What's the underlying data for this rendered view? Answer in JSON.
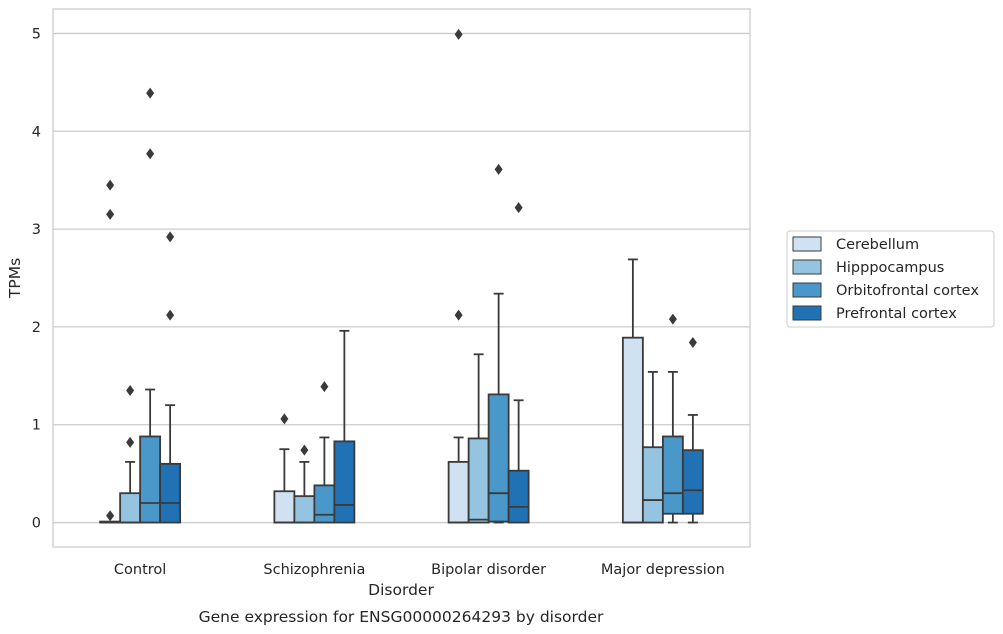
{
  "chart_data": {
    "type": "box",
    "title": "",
    "caption": "Gene expression for ENSG00000264293 by disorder",
    "xlabel": "Disorder",
    "ylabel": "TPMs",
    "ylim": [
      -0.25,
      5.25
    ],
    "yticks": [
      0,
      1,
      2,
      3,
      4,
      5
    ],
    "grid": "horizontal",
    "legend_position": "right",
    "categories": [
      "Control",
      "Schizophrenia",
      "Bipolar disorder",
      "Major depression"
    ],
    "series": [
      {
        "name": "Cerebellum",
        "color": "#d0e1f2",
        "boxes": [
          {
            "q1": 0,
            "median": 0,
            "q3": 0.01,
            "whisker_low": 0,
            "whisker_high": 0.01,
            "outliers": [
              0.07,
              3.15,
              3.45
            ]
          },
          {
            "q1": 0,
            "median": 0,
            "q3": 0.32,
            "whisker_low": 0,
            "whisker_high": 0.75,
            "outliers": [
              1.06
            ]
          },
          {
            "q1": 0,
            "median": 0,
            "q3": 0.62,
            "whisker_low": 0,
            "whisker_high": 0.87,
            "outliers": [
              2.12,
              4.99
            ]
          },
          {
            "q1": 0,
            "median": 0,
            "q3": 1.89,
            "whisker_low": 0,
            "whisker_high": 2.69,
            "outliers": []
          }
        ]
      },
      {
        "name": "Hipppocampus",
        "color": "#94c4df",
        "boxes": [
          {
            "q1": 0,
            "median": 0,
            "q3": 0.3,
            "whisker_low": 0,
            "whisker_high": 0.62,
            "outliers": [
              0.82,
              1.35
            ]
          },
          {
            "q1": 0,
            "median": 0,
            "q3": 0.27,
            "whisker_low": 0,
            "whisker_high": 0.62,
            "outliers": [
              0.74
            ]
          },
          {
            "q1": 0,
            "median": 0.03,
            "q3": 0.86,
            "whisker_low": 0,
            "whisker_high": 1.72,
            "outliers": []
          },
          {
            "q1": 0,
            "median": 0.23,
            "q3": 0.77,
            "whisker_low": 0,
            "whisker_high": 1.54,
            "outliers": []
          }
        ]
      },
      {
        "name": "Orbitofrontal cortex",
        "color": "#4a98c9",
        "boxes": [
          {
            "q1": 0,
            "median": 0.2,
            "q3": 0.88,
            "whisker_low": 0,
            "whisker_high": 1.36,
            "outliers": [
              3.77,
              4.39
            ]
          },
          {
            "q1": 0,
            "median": 0.08,
            "q3": 0.38,
            "whisker_low": 0,
            "whisker_high": 0.87,
            "outliers": [
              1.39
            ]
          },
          {
            "q1": 0.01,
            "median": 0.3,
            "q3": 1.31,
            "whisker_low": 0,
            "whisker_high": 2.34,
            "outliers": [
              3.61
            ]
          },
          {
            "q1": 0.09,
            "median": 0.3,
            "q3": 0.88,
            "whisker_low": 0,
            "whisker_high": 1.54,
            "outliers": [
              2.08
            ]
          }
        ]
      },
      {
        "name": "Prefrontal cortex",
        "color": "#2171b5",
        "boxes": [
          {
            "q1": 0,
            "median": 0.2,
            "q3": 0.6,
            "whisker_low": 0,
            "whisker_high": 1.2,
            "outliers": [
              2.12,
              2.92
            ]
          },
          {
            "q1": 0,
            "median": 0.18,
            "q3": 0.83,
            "whisker_low": 0,
            "whisker_high": 1.96,
            "outliers": []
          },
          {
            "q1": 0,
            "median": 0.16,
            "q3": 0.53,
            "whisker_low": 0,
            "whisker_high": 1.25,
            "outliers": [
              3.22
            ]
          },
          {
            "q1": 0.09,
            "median": 0.33,
            "q3": 0.74,
            "whisker_low": 0,
            "whisker_high": 1.1,
            "outliers": [
              1.84
            ]
          }
        ]
      }
    ]
  }
}
